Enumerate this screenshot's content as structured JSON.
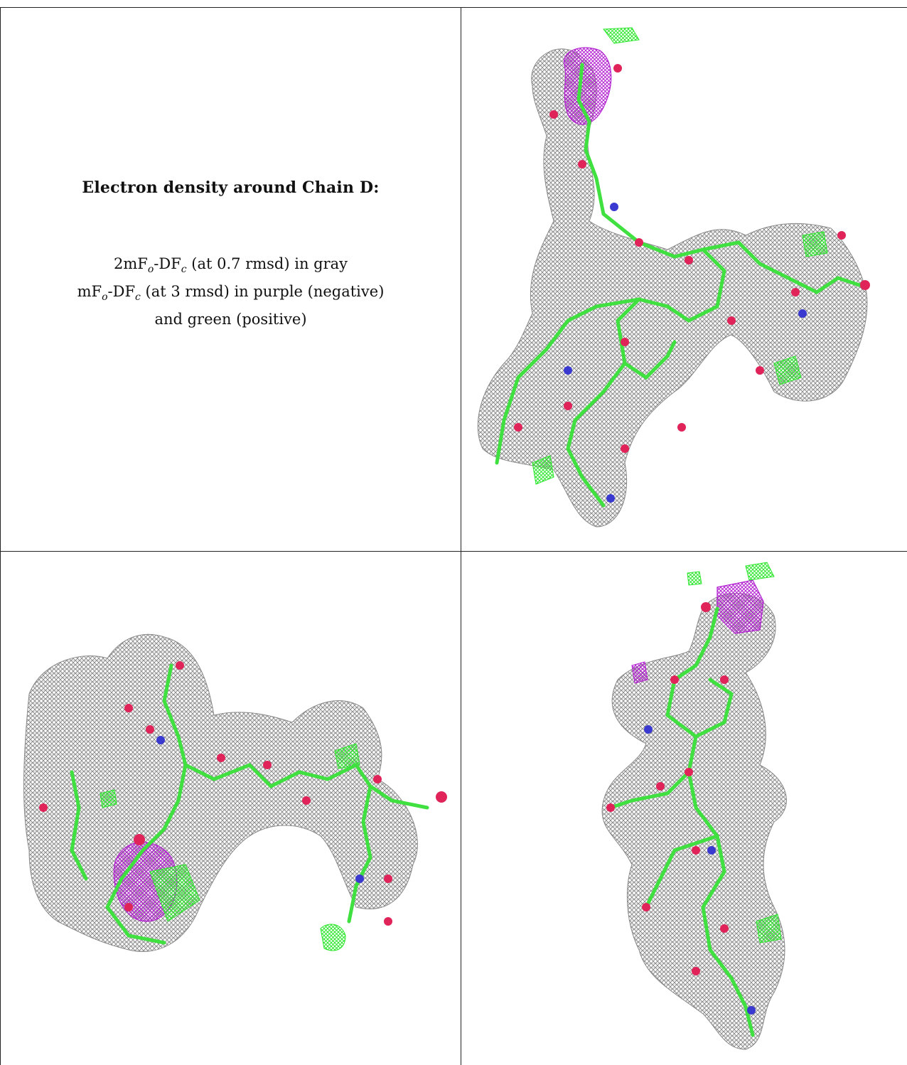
{
  "caption": {
    "title": "Electron density around Chain D:",
    "line1_a": "2mF",
    "line1_sub_o": "o",
    "line1_b": "-DF",
    "line1_sub_c": "c",
    "line1_c": " (at 0.7 rmsd) in gray",
    "line2_a": "mF",
    "line2_sub_o": "o",
    "line2_b": "-DF",
    "line2_sub_c": "c",
    "line2_c": " (at 3 rmsd) in purple (negative)",
    "line3": "and green (positive)"
  },
  "colors": {
    "mesh_gray": "#7d7d7d",
    "mesh_purple": "#b21fd0",
    "mesh_green": "#2ee62e",
    "stick_green": "#3fe03f",
    "oxygen": "#e0245a",
    "nitrogen": "#3a3ad0",
    "grid": "#222222"
  }
}
